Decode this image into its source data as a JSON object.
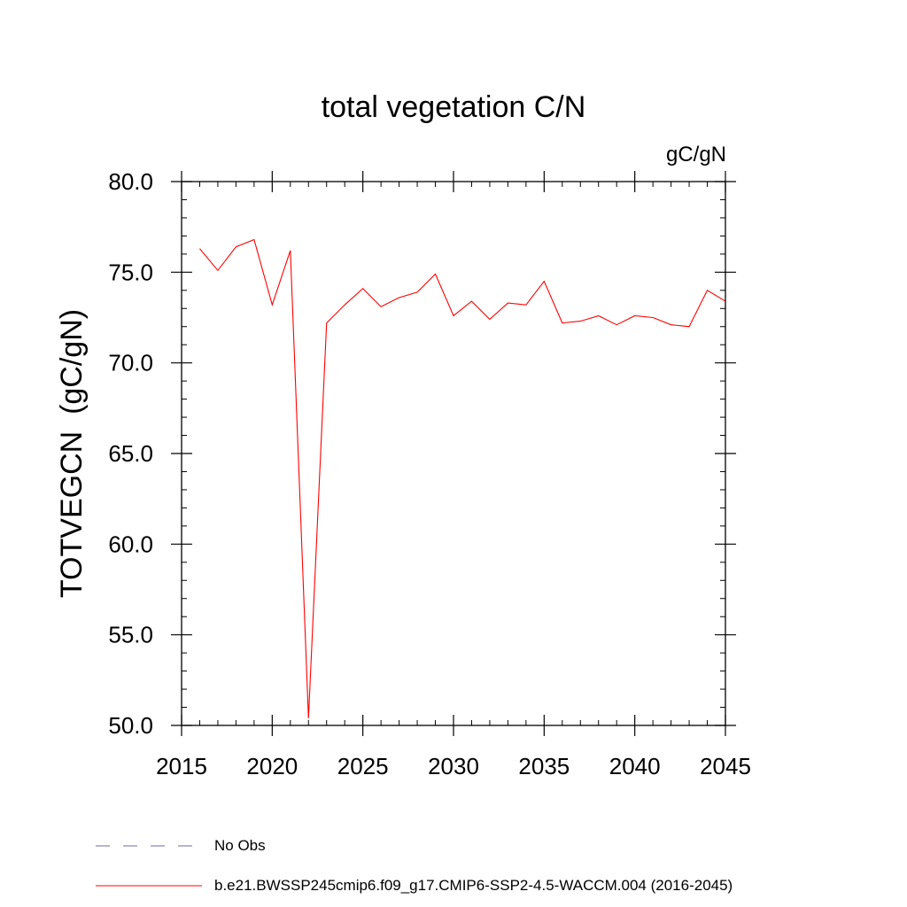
{
  "chart_data": {
    "type": "line",
    "title": "total vegetation C/N",
    "units_label": "gC/gN",
    "ylabel": "TOTVEGCN  (gC/gN)",
    "xlabel": "",
    "xlim": [
      2015,
      2045
    ],
    "ylim": [
      50,
      80
    ],
    "x_major_ticks": [
      2015,
      2020,
      2025,
      2030,
      2035,
      2040,
      2045
    ],
    "x_tick_labels": [
      "2015",
      "2020",
      "2025",
      "2030",
      "2035",
      "2040",
      "2045"
    ],
    "x_minor_step": 1,
    "y_major_ticks": [
      50,
      55,
      60,
      65,
      70,
      75,
      80
    ],
    "y_tick_labels": [
      "50.0",
      "55.0",
      "60.0",
      "65.0",
      "70.0",
      "75.0",
      "80.0"
    ],
    "y_minor_step": 1,
    "grid": false,
    "series": [
      {
        "name": "b.e21.BWSSP245cmip6.f09_g17.CMIP6-SSP2-4.5-WACCM.004 (2016-2045)",
        "color": "#ff0000",
        "style": "solid",
        "x": [
          2016,
          2017,
          2018,
          2019,
          2020,
          2021,
          2022,
          2023,
          2024,
          2025,
          2026,
          2027,
          2028,
          2029,
          2030,
          2031,
          2032,
          2033,
          2034,
          2035,
          2036,
          2037,
          2038,
          2039,
          2040,
          2041,
          2042,
          2043,
          2044,
          2045
        ],
        "values": [
          76.3,
          75.1,
          76.4,
          76.8,
          73.2,
          76.2,
          50.4,
          72.2,
          73.2,
          74.1,
          73.1,
          73.6,
          73.9,
          74.9,
          72.6,
          73.4,
          72.4,
          73.3,
          73.2,
          74.5,
          72.2,
          72.3,
          72.6,
          72.1,
          72.6,
          72.5,
          72.1,
          72.0,
          74.0,
          73.4
        ]
      }
    ],
    "legend": {
      "placement": "bottom-left",
      "entries": [
        {
          "label": "No Obs",
          "color": "#7766aa",
          "style": "dashed"
        },
        {
          "label": "b.e21.BWSSP245cmip6.f09_g17.CMIP6-SSP2-4.5-WACCM.004 (2016-2045)",
          "color": "#ff0000",
          "style": "solid"
        }
      ]
    }
  }
}
